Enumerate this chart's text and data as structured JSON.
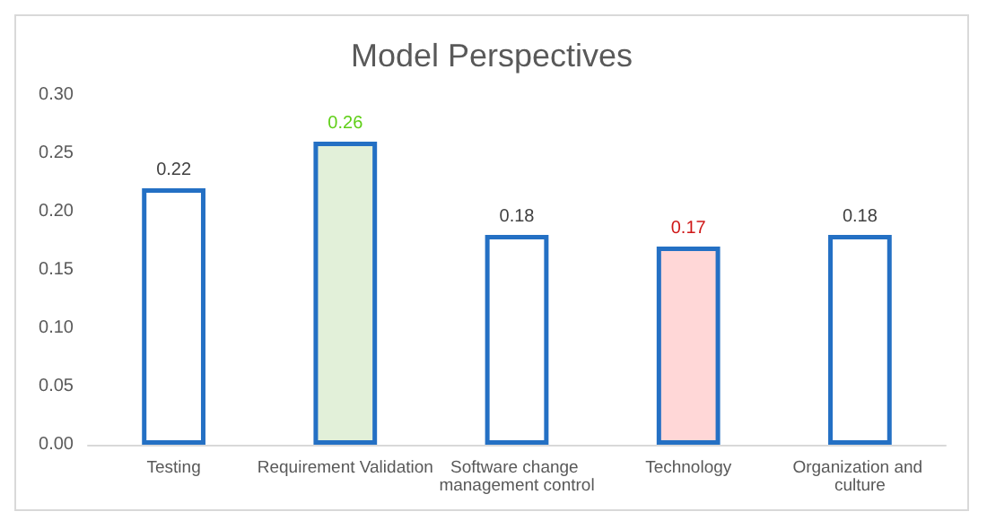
{
  "chart_data": {
    "type": "bar",
    "title": "Model Perspectives",
    "categories": [
      "Testing",
      "Requirement Validation",
      "Software change management control",
      "Technology",
      "Organization and culture"
    ],
    "values": [
      0.22,
      0.26,
      0.18,
      0.17,
      0.18
    ],
    "color": "#2470c4",
    "colors": [
      "#ffffff",
      "#e2f0d9",
      "#ffffff",
      "#ffd7d7",
      "#ffffff"
    ],
    "ylim": [
      0,
      0.3
    ],
    "yticks": [
      {
        "value": 0,
        "label": "0.00"
      },
      {
        "value": 0.05,
        "label": "0.05"
      },
      {
        "value": 0.1,
        "label": "0.10"
      },
      {
        "value": 0.15,
        "label": "0.15"
      },
      {
        "value": 0.2,
        "label": "0.20"
      },
      {
        "value": 0.25,
        "label": "0.25"
      },
      {
        "value": 0.3,
        "label": "0.30"
      }
    ],
    "grid": false,
    "data_labels": true
  }
}
